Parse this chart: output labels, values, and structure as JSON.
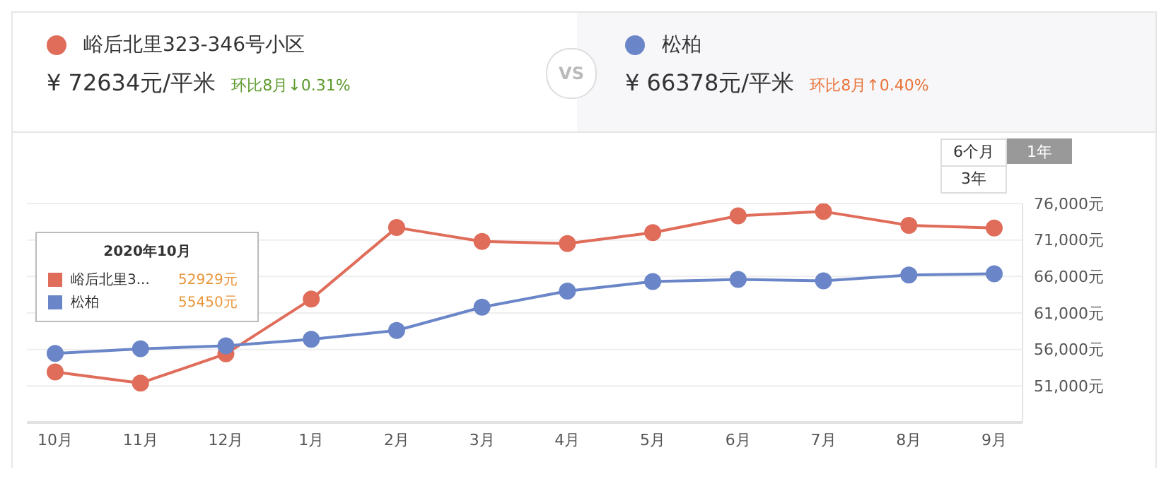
{
  "chart_data": {
    "type": "line",
    "categories": [
      "10月",
      "11月",
      "12月",
      "1月",
      "2月",
      "3月",
      "4月",
      "5月",
      "6月",
      "7月",
      "8月",
      "9月"
    ],
    "series": [
      {
        "name": "峪后北里323-346号小区",
        "color": "#e06c5a",
        "values": [
          52929,
          51400,
          55400,
          62900,
          72700,
          70800,
          70500,
          72000,
          74300,
          74900,
          73000,
          72634
        ]
      },
      {
        "name": "松柏",
        "color": "#6b86c8",
        "values": [
          55450,
          56100,
          56500,
          57400,
          58600,
          61800,
          64000,
          65300,
          65600,
          65400,
          66200,
          66378
        ]
      }
    ],
    "ylim": [
      46000,
      76000
    ],
    "yticks": [
      {
        "value": 51000,
        "label": "51,000元"
      },
      {
        "value": 56000,
        "label": "56,000元"
      },
      {
        "value": 61000,
        "label": "61,000元"
      },
      {
        "value": 66000,
        "label": "66,000元"
      },
      {
        "value": 71000,
        "label": "71,000元"
      },
      {
        "value": 76000,
        "label": "76,000元"
      }
    ],
    "grid": "y",
    "legend": "top",
    "marker": "circle",
    "line_style": "solid",
    "annotations": [
      "¥ 72634元/平米",
      "环比8月↓0.31%",
      "VS",
      "¥ 66378元/平米",
      "环比8月↑0.40%",
      "6个月",
      "1年",
      "3年",
      "2020年10月",
      "峪后北里3...",
      "52929元",
      "55450元"
    ]
  }
}
